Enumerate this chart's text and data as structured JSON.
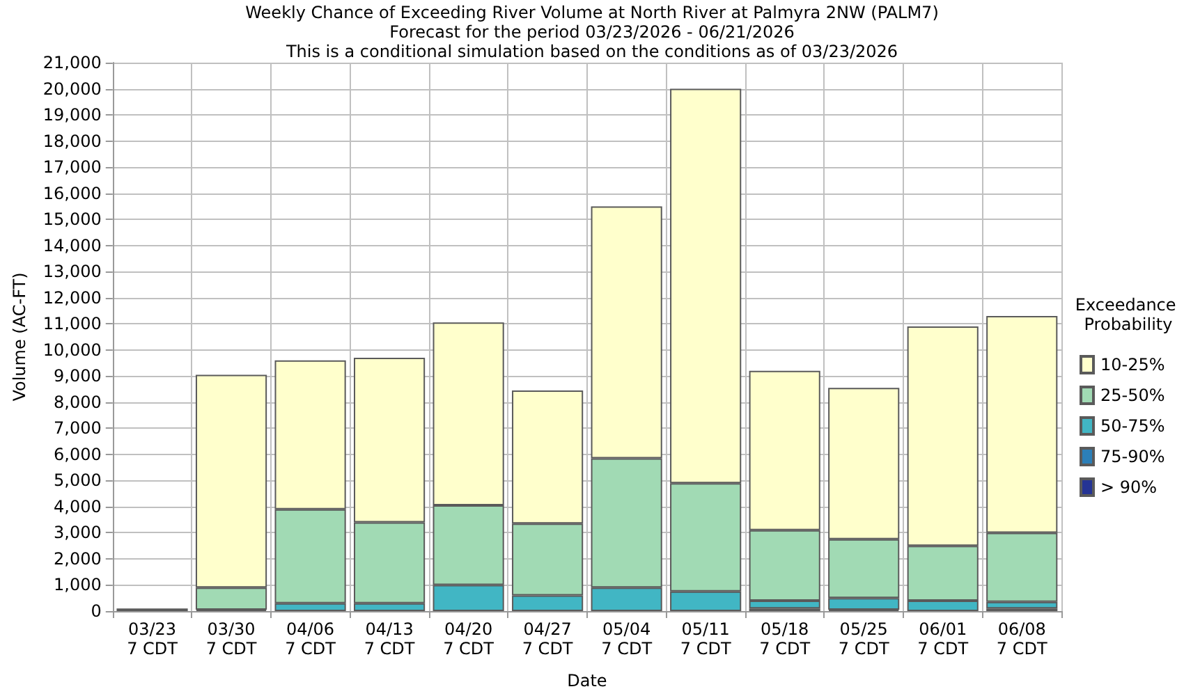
{
  "chart_data": {
    "type": "bar",
    "title": "Weekly Chance of Exceeding River Volume at North River at Palmyra 2NW (PALM7)",
    "subtitle": "Forecast for the period 03/23/2026 - 06/21/2026\nThis is a conditional simulation based on the conditions as of 03/23/2026",
    "xlabel": "Date",
    "ylabel": "Volume (AC-FT)",
    "legend_title": "Exceedance Probability",
    "categories": [
      "03/23\n7 CDT",
      "03/30\n7 CDT",
      "04/06\n7 CDT",
      "04/13\n7 CDT",
      "04/20\n7 CDT",
      "04/27\n7 CDT",
      "05/04\n7 CDT",
      "05/11\n7 CDT",
      "05/18\n7 CDT",
      "05/25\n7 CDT",
      "06/01\n7 CDT",
      "06/08\n7 CDT"
    ],
    "stacked": true,
    "series": [
      {
        "name": "> 90%",
        "color": "#253494",
        "values": [
          100,
          0,
          0,
          0,
          0,
          0,
          0,
          0,
          0,
          0,
          0,
          0
        ]
      },
      {
        "name": "75-90%",
        "color": "#2c7fb8",
        "values": [
          0,
          0,
          0,
          0,
          0,
          0,
          0,
          0,
          100,
          50,
          0,
          100
        ]
      },
      {
        "name": "50-75%",
        "color": "#41b6c4",
        "values": [
          0,
          50,
          300,
          300,
          1000,
          600,
          900,
          750,
          300,
          450,
          400,
          250
        ]
      },
      {
        "name": "25-50%",
        "color": "#a1dab4",
        "values": [
          0,
          850,
          3600,
          3100,
          3050,
          2750,
          4950,
          4150,
          2700,
          2250,
          2100,
          2650
        ]
      },
      {
        "name": "10-25%",
        "color": "#ffffcc",
        "values": [
          0,
          8150,
          5700,
          6300,
          7000,
          5100,
          9650,
          15100,
          6100,
          5800,
          8400,
          8300
        ]
      }
    ],
    "ylim": [
      0,
      21000
    ],
    "yticks": [
      0,
      {
        "value": 1000,
        "label": "1,000"
      },
      {
        "value": 2000,
        "label": "2,000"
      },
      {
        "value": 3000,
        "label": "3,000"
      },
      {
        "value": 4000,
        "label": "4,000"
      },
      {
        "value": 5000,
        "label": "5,000"
      },
      {
        "value": 6000,
        "label": "6,000"
      },
      {
        "value": 7000,
        "label": "7,000"
      },
      {
        "value": 8000,
        "label": "8,000"
      },
      {
        "value": 9000,
        "label": "9,000"
      },
      {
        "value": 10000,
        "label": "10,000"
      },
      {
        "value": 11000,
        "label": "11,000"
      },
      {
        "value": 12000,
        "label": "12,000"
      },
      {
        "value": 13000,
        "label": "13,000"
      },
      {
        "value": 14000,
        "label": "14,000"
      },
      {
        "value": 15000,
        "label": "15,000"
      },
      {
        "value": 16000,
        "label": "16,000"
      },
      {
        "value": 17000,
        "label": "17,000"
      },
      {
        "value": 18000,
        "label": "18,000"
      },
      {
        "value": 19000,
        "label": "19,000"
      },
      {
        "value": 20000,
        "label": "20,000"
      },
      {
        "value": 21000,
        "label": "21,000"
      }
    ],
    "grid": true,
    "legend": "right"
  }
}
